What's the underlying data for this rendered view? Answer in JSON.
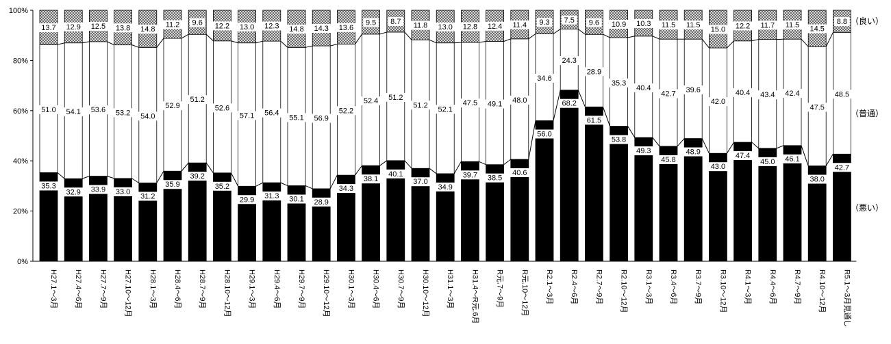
{
  "chart_data": {
    "type": "bar",
    "stacked": true,
    "percent": true,
    "title": "",
    "xlabel": "",
    "ylabel": "",
    "ylim": [
      0,
      100
    ],
    "yticks": [
      "0%",
      "20%",
      "40%",
      "60%",
      "80%",
      "100%"
    ],
    "categories": [
      "H27.1～3月",
      "H27.4～6月",
      "H27.7～9月",
      "H27.10～12月",
      "H28.1～3月",
      "H28.4～6月",
      "H28.7～9月",
      "H28.10～12月",
      "H29.1～3月",
      "H29.4～6月",
      "H29.7～9月",
      "H29.10～12月",
      "H30.1～3月",
      "H30.4～6月",
      "H30.7～9月",
      "H30.10～12月",
      "H31.1～3月",
      "H31.4～R元.6月",
      "R元.7～9月",
      "R元.10～12月",
      "R2.1～3月",
      "R2.4～6月",
      "R2.7～9月",
      "R2.10～12月",
      "R3.1～3月",
      "R3.4～6月",
      "R3.7～9月",
      "R3.10～12月",
      "R4.1～3月",
      "R4.4～6月",
      "R4.7～9月",
      "R4.10～12月",
      "R5.1～3月見通し"
    ],
    "series": [
      {
        "name": "（悪い）",
        "color": "#000000",
        "values": [
          35.3,
          32.9,
          33.9,
          33.0,
          31.2,
          35.9,
          39.2,
          35.2,
          29.9,
          31.3,
          30.1,
          28.9,
          34.3,
          38.1,
          40.1,
          37.0,
          34.9,
          39.7,
          38.5,
          40.6,
          56.0,
          68.2,
          61.5,
          53.8,
          49.3,
          45.8,
          48.9,
          43.0,
          47.4,
          45.0,
          46.1,
          38.0,
          42.7
        ]
      },
      {
        "name": "（普通）",
        "color": "#ffffff",
        "values": [
          51.0,
          54.1,
          53.6,
          53.2,
          54.0,
          52.9,
          51.2,
          52.6,
          57.1,
          56.4,
          55.1,
          56.9,
          52.2,
          52.4,
          51.2,
          51.2,
          52.1,
          47.5,
          49.1,
          48.0,
          34.6,
          24.3,
          28.9,
          35.3,
          40.4,
          42.7,
          39.6,
          42.0,
          40.4,
          43.4,
          42.4,
          47.5,
          48.5
        ]
      },
      {
        "name": "（良い）",
        "color": "#a9a9a9",
        "values": [
          13.7,
          12.9,
          12.5,
          13.8,
          14.8,
          11.2,
          9.6,
          12.2,
          13.0,
          12.3,
          14.8,
          14.3,
          13.6,
          9.5,
          8.7,
          11.8,
          13.0,
          12.8,
          12.4,
          11.4,
          9.3,
          7.5,
          9.6,
          10.9,
          10.3,
          11.5,
          11.5,
          15.0,
          12.2,
          11.7,
          11.5,
          14.5,
          8.8
        ]
      }
    ],
    "legend_position": "right",
    "grid": false
  }
}
